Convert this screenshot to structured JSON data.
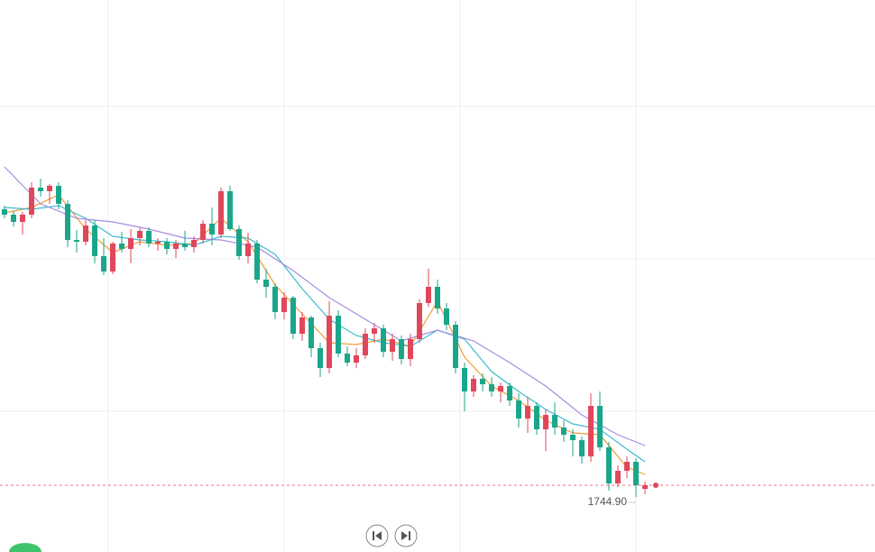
{
  "chart_data": {
    "type": "candlestick",
    "ylim": [
      1738.8,
      1800
    ],
    "xlim": [
      -0.5,
      96.5
    ],
    "ygrid": [
      1788.2,
      1771.3,
      1754.4
    ],
    "xgrid": [
      11.5,
      31,
      50.5,
      70
    ],
    "up_color": "#e0475b",
    "down_color": "#1aa68a",
    "open": [
      1776.8,
      1776.2,
      1775.4,
      1776.2,
      1779.2,
      1778.8,
      1779.4,
      1777.4,
      1773.4,
      1773.2,
      1775.0,
      1771.6,
      1769.9,
      1773.0,
      1772.4,
      1773.6,
      1774.4,
      1773.0,
      1773.2,
      1772.4,
      1773.0,
      1772.6,
      1773.4,
      1775.2,
      1774.0,
      1778.8,
      1774.6,
      1771.6,
      1773.0,
      1769.0,
      1768.2,
      1765.4,
      1767.0,
      1763.0,
      1764.8,
      1761.4,
      1759.2,
      1765.0,
      1760.8,
      1759.8,
      1760.6,
      1763.0,
      1763.6,
      1761.0,
      1762.4,
      1760.2,
      1762.4,
      1766.4,
      1768.2,
      1765.8,
      1764.0,
      1759.2,
      1756.6,
      1758.0,
      1757.4,
      1756.6,
      1757.2,
      1755.6,
      1753.6,
      1755.0,
      1752.4,
      1754.0,
      1752.6,
      1751.8,
      1751.2,
      1749.4,
      1755.0,
      1750.4,
      1746.4,
      1747.8,
      1748.8,
      1745.8
    ],
    "high": [
      1777.2,
      1776.6,
      1776.5,
      1779.8,
      1780.2,
      1779.6,
      1779.8,
      1777.8,
      1774.5,
      1775.6,
      1775.6,
      1773.6,
      1773.2,
      1774.3,
      1774.6,
      1774.8,
      1774.8,
      1773.6,
      1773.6,
      1773.4,
      1774.4,
      1773.8,
      1775.6,
      1777.0,
      1779.2,
      1779.4,
      1775.0,
      1774.2,
      1773.4,
      1770.2,
      1768.6,
      1767.6,
      1767.2,
      1765.4,
      1765.0,
      1762.0,
      1766.6,
      1765.6,
      1761.6,
      1761.4,
      1763.6,
      1764.2,
      1764.0,
      1763.0,
      1762.8,
      1763.0,
      1766.8,
      1770.2,
      1769.0,
      1766.4,
      1764.4,
      1759.8,
      1758.4,
      1758.6,
      1758.2,
      1757.6,
      1757.6,
      1756.4,
      1756.0,
      1755.4,
      1754.6,
      1755.4,
      1753.4,
      1752.4,
      1751.6,
      1756.4,
      1756.6,
      1751.0,
      1748.4,
      1749.4,
      1749.2,
      1746.6
    ],
    "low": [
      1775.8,
      1774.9,
      1774.0,
      1775.8,
      1778.2,
      1777.4,
      1776.8,
      1772.6,
      1772.0,
      1772.8,
      1770.8,
      1769.5,
      1769.6,
      1772.0,
      1770.8,
      1772.8,
      1772.6,
      1772.2,
      1771.8,
      1771.4,
      1772.2,
      1772.0,
      1773.0,
      1772.8,
      1773.6,
      1774.4,
      1771.2,
      1770.8,
      1768.6,
      1767.0,
      1764.6,
      1764.6,
      1762.4,
      1762.2,
      1760.4,
      1758.2,
      1758.6,
      1760.4,
      1759.4,
      1759.2,
      1760.2,
      1762.0,
      1760.4,
      1760.0,
      1759.6,
      1759.4,
      1762.0,
      1766.0,
      1765.2,
      1763.4,
      1758.6,
      1754.4,
      1756.0,
      1756.6,
      1756.0,
      1755.4,
      1755.0,
      1752.6,
      1752.0,
      1751.8,
      1750.0,
      1751.8,
      1751.0,
      1749.4,
      1748.6,
      1748.8,
      1750.0,
      1745.6,
      1746.0,
      1747.0,
      1744.9,
      1745.2
    ],
    "close": [
      1776.2,
      1775.4,
      1776.2,
      1779.2,
      1778.8,
      1779.4,
      1777.4,
      1773.4,
      1773.2,
      1775.0,
      1771.6,
      1769.9,
      1773.0,
      1772.4,
      1773.6,
      1774.4,
      1773.0,
      1773.2,
      1772.4,
      1773.0,
      1772.6,
      1773.4,
      1775.2,
      1774.0,
      1778.8,
      1774.6,
      1771.6,
      1773.0,
      1769.0,
      1768.2,
      1765.4,
      1767.0,
      1763.0,
      1764.8,
      1761.4,
      1759.2,
      1765.0,
      1760.8,
      1759.8,
      1760.6,
      1763.0,
      1763.6,
      1761.0,
      1762.4,
      1760.2,
      1762.4,
      1766.4,
      1768.2,
      1765.8,
      1764.0,
      1759.2,
      1756.6,
      1758.0,
      1757.4,
      1756.6,
      1757.2,
      1755.6,
      1753.6,
      1755.0,
      1752.4,
      1754.0,
      1752.6,
      1751.8,
      1751.2,
      1749.4,
      1755.0,
      1750.4,
      1746.4,
      1747.8,
      1748.8,
      1746.2,
      1746.2
    ],
    "lines": [
      {
        "color": "#f29b38",
        "x": [
          0,
          3,
          6,
          9,
          12,
          15,
          18,
          21,
          24,
          27,
          30,
          33,
          36,
          39,
          42,
          45,
          48,
          51,
          54,
          57,
          60,
          63,
          66,
          69,
          71
        ],
        "values": [
          1776.4,
          1777.0,
          1778.4,
          1774.6,
          1772.0,
          1773.2,
          1772.8,
          1773.0,
          1775.8,
          1773.2,
          1768.4,
          1765.2,
          1762.0,
          1761.8,
          1762.4,
          1761.6,
          1766.6,
          1760.4,
          1757.2,
          1755.6,
          1753.4,
          1752.0,
          1751.8,
          1748.2,
          1747.4
        ]
      },
      {
        "color": "#3cbcd0",
        "x": [
          0,
          3,
          6,
          9,
          12,
          15,
          18,
          21,
          24,
          27,
          30,
          33,
          36,
          39,
          42,
          45,
          48,
          51,
          54,
          57,
          60,
          63,
          66,
          69,
          71
        ],
        "values": [
          1777.0,
          1776.8,
          1777.2,
          1775.8,
          1773.8,
          1773.4,
          1773.2,
          1772.8,
          1773.8,
          1773.6,
          1771.8,
          1768.0,
          1764.6,
          1762.8,
          1762.0,
          1761.6,
          1763.4,
          1762.4,
          1758.8,
          1756.6,
          1754.6,
          1753.0,
          1752.4,
          1750.2,
          1748.8
        ]
      },
      {
        "color": "#a68de0",
        "x": [
          0,
          4,
          8,
          12,
          16,
          20,
          24,
          28,
          32,
          36,
          40,
          44,
          48,
          52,
          56,
          60,
          64,
          68,
          71
        ],
        "values": [
          1781.5,
          1777.4,
          1775.8,
          1775.4,
          1774.6,
          1773.6,
          1773.4,
          1772.6,
          1770.0,
          1767.0,
          1764.6,
          1762.2,
          1763.4,
          1762.2,
          1759.8,
          1757.2,
          1754.0,
          1751.8,
          1750.6
        ]
      }
    ],
    "last_price": 1746.2,
    "last_color": "#e0475b",
    "low_label": {
      "value": 1744.9,
      "label": "1744.90"
    }
  }
}
